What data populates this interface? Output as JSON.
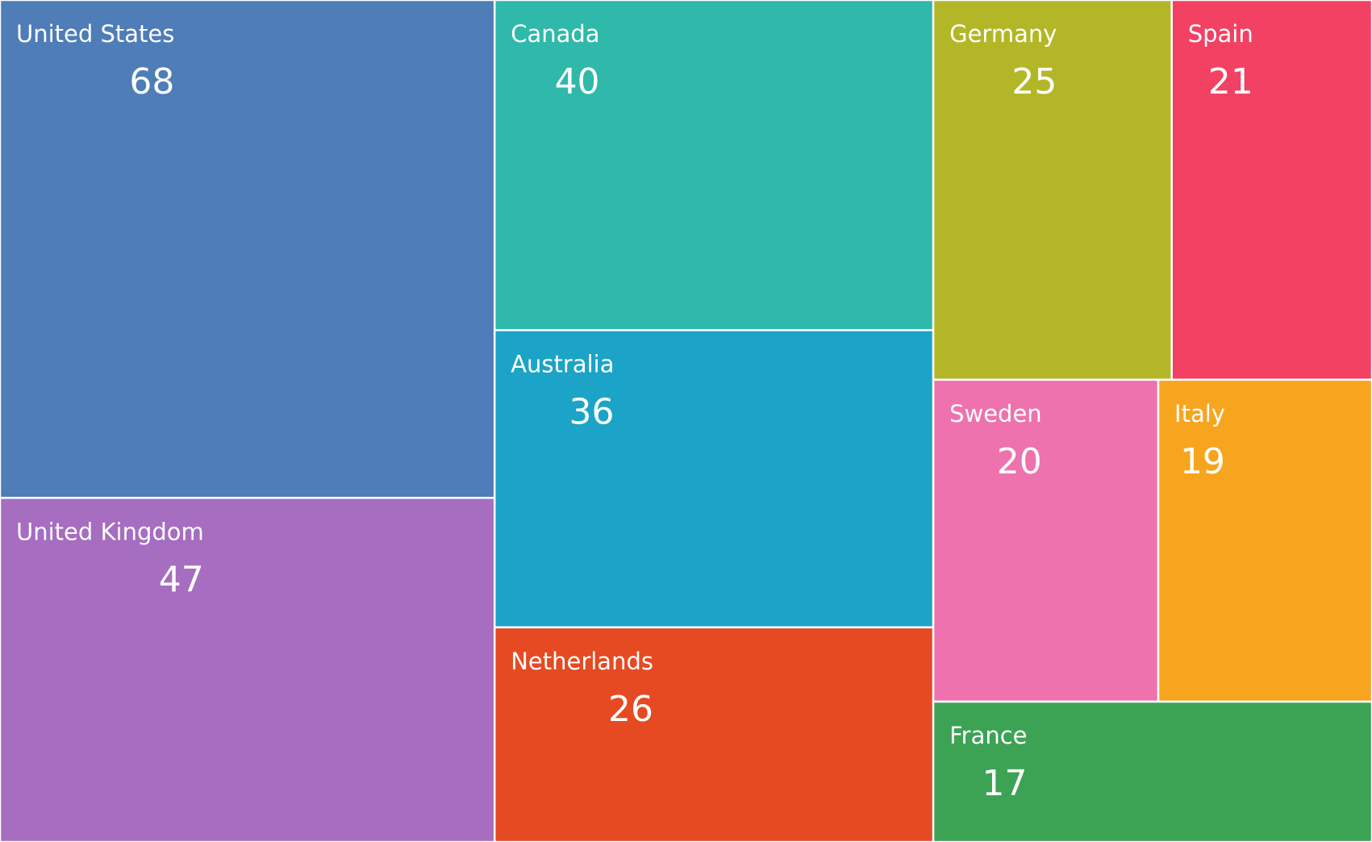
{
  "chart_data": {
    "type": "treemap",
    "categories": [
      "United States",
      "United Kingdom",
      "Canada",
      "Australia",
      "Netherlands",
      "Germany",
      "Spain",
      "Sweden",
      "Italy",
      "France"
    ],
    "values": [
      68,
      47,
      40,
      36,
      26,
      25,
      21,
      20,
      19,
      17
    ],
    "colors": [
      "#4e7db8",
      "#a66dc0",
      "#2fb9aa",
      "#1ba4c7",
      "#e64a22",
      "#b3b727",
      "#f24163",
      "#ee72ad",
      "#f7a51e",
      "#3ca355"
    ]
  }
}
